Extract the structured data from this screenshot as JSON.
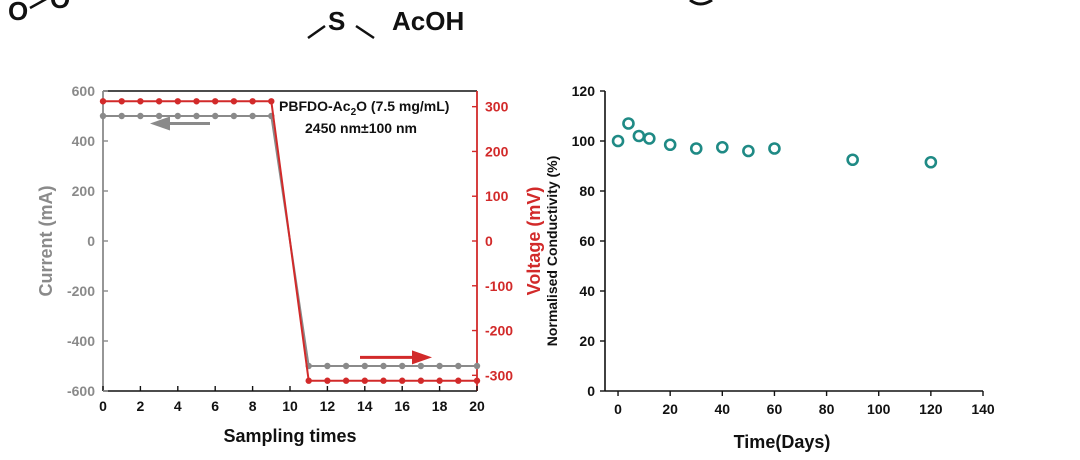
{
  "header": {
    "left_fragment": "O",
    "left_fragment_2": "O",
    "sulfur": "S",
    "reagent": "AcOH"
  },
  "colors": {
    "current": "#8a8a8a",
    "voltage": "#d22a2a",
    "conductivity": "#1f8a85",
    "axis": "#111111"
  },
  "chart_data": [
    {
      "type": "line",
      "annotation_line1_main": "PBFDO-Ac",
      "annotation_line1_sub": "2",
      "annotation_line1_tail": "O (7.5 mg/mL)",
      "annotation_line2": "2450 nm±100 nm",
      "xlabel": "Sampling times",
      "ylabel": "Current (mA)",
      "y2label": "Voltage (mV)",
      "xlim": [
        0,
        20
      ],
      "ylim": [
        -600,
        600
      ],
      "y2lim": [
        -335,
        335
      ],
      "xticks": [
        0,
        2,
        4,
        6,
        8,
        10,
        12,
        14,
        16,
        18,
        20
      ],
      "yticks": [
        600,
        400,
        200,
        0,
        -200,
        -400,
        -600
      ],
      "y2ticks": [
        300,
        200,
        100,
        0,
        -100,
        -200,
        -300
      ],
      "series": [
        {
          "axis": "left",
          "x": [
            0,
            1,
            2,
            3,
            4,
            5,
            6,
            7,
            8,
            9,
            11,
            12,
            13,
            14,
            15,
            16,
            17,
            18,
            19,
            20
          ],
          "values": [
            500,
            500,
            500,
            500,
            500,
            500,
            500,
            500,
            500,
            500,
            -500,
            -500,
            -500,
            -500,
            -500,
            -500,
            -500,
            -500,
            -500,
            -500
          ]
        },
        {
          "axis": "right",
          "x": [
            0,
            1,
            2,
            3,
            4,
            5,
            6,
            7,
            8,
            9,
            11,
            12,
            13,
            14,
            15,
            16,
            17,
            18,
            19,
            20
          ],
          "values": [
            312,
            312,
            312,
            312,
            312,
            312,
            312,
            312,
            312,
            312,
            -312,
            -312,
            -312,
            -312,
            -312,
            -312,
            -312,
            -312,
            -312,
            -312
          ]
        }
      ]
    },
    {
      "type": "scatter",
      "xlabel": "Time(Days)",
      "ylabel": "Normalised Conductivity (%)",
      "xlim": [
        -5,
        140
      ],
      "ylim": [
        0,
        120
      ],
      "xticks": [
        0,
        20,
        40,
        60,
        80,
        100,
        120,
        140
      ],
      "yticks": [
        0,
        20,
        40,
        60,
        80,
        100,
        120
      ],
      "x": [
        0,
        4,
        8,
        12,
        20,
        30,
        40,
        50,
        60,
        90,
        120
      ],
      "y": [
        100,
        107,
        102,
        101,
        98.5,
        97,
        97.5,
        96,
        97,
        92.5,
        91.5
      ]
    }
  ]
}
